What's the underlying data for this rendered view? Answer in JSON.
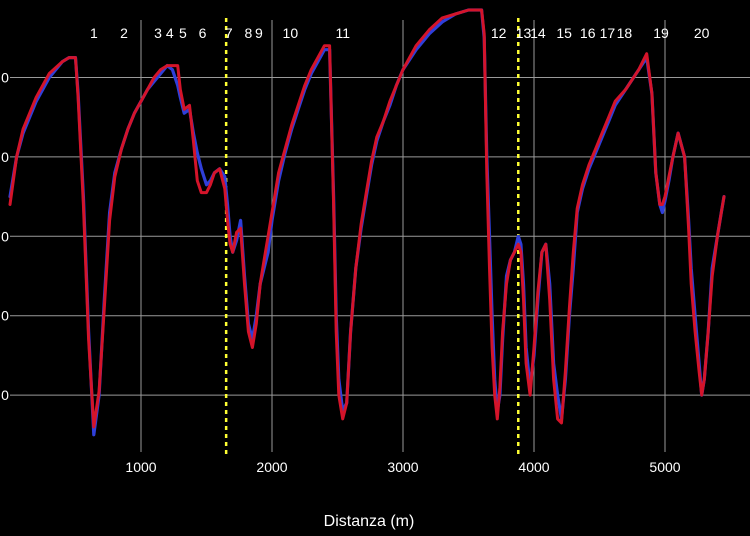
{
  "chart_data": {
    "type": "line",
    "xlabel": "Distanza (m)",
    "xlim": [
      0,
      5450
    ],
    "xticks": [
      1000,
      2000,
      3000,
      4000,
      5000
    ],
    "ylim": [
      0,
      58
    ],
    "y_gridlines": [
      10,
      20,
      30,
      40,
      50
    ],
    "y_tick_label_fragments": [
      "0",
      "0",
      "0",
      "0",
      "0"
    ],
    "grid": true,
    "corner_labels": [
      {
        "x": 640,
        "label": "1"
      },
      {
        "x": 870,
        "label": "2"
      },
      {
        "x": 1130,
        "label": "3"
      },
      {
        "x": 1220,
        "label": "4"
      },
      {
        "x": 1320,
        "label": "5"
      },
      {
        "x": 1470,
        "label": "6"
      },
      {
        "x": 1670,
        "label": "7"
      },
      {
        "x": 1820,
        "label": "8"
      },
      {
        "x": 1900,
        "label": "9"
      },
      {
        "x": 2140,
        "label": "10"
      },
      {
        "x": 2540,
        "label": "11"
      },
      {
        "x": 3730,
        "label": "12"
      },
      {
        "x": 3920,
        "label": "13"
      },
      {
        "x": 4030,
        "label": "14"
      },
      {
        "x": 4230,
        "label": "15"
      },
      {
        "x": 4410,
        "label": "16"
      },
      {
        "x": 4560,
        "label": "17"
      },
      {
        "x": 4690,
        "label": "18"
      },
      {
        "x": 4970,
        "label": "19"
      },
      {
        "x": 5280,
        "label": "20"
      }
    ],
    "sector_markers": [
      1650,
      3880
    ],
    "series": [
      {
        "color": "#2f3fd9",
        "x": [
          0,
          50,
          100,
          200,
          300,
          400,
          450,
          500,
          520,
          560,
          600,
          640,
          680,
          720,
          760,
          800,
          850,
          900,
          950,
          1000,
          1050,
          1100,
          1150,
          1200,
          1240,
          1280,
          1300,
          1330,
          1370,
          1400,
          1430,
          1460,
          1500,
          1530,
          1560,
          1600,
          1640,
          1660,
          1680,
          1700,
          1730,
          1760,
          1790,
          1820,
          1850,
          1880,
          1910,
          1940,
          1970,
          2000,
          2050,
          2100,
          2150,
          2200,
          2250,
          2300,
          2350,
          2400,
          2440,
          2470,
          2490,
          2510,
          2540,
          2570,
          2600,
          2640,
          2680,
          2720,
          2760,
          2800,
          2850,
          2900,
          2950,
          3000,
          3100,
          3200,
          3300,
          3400,
          3500,
          3550,
          3600,
          3620,
          3640,
          3660,
          3680,
          3700,
          3720,
          3740,
          3760,
          3790,
          3820,
          3850,
          3880,
          3900,
          3920,
          3940,
          3970,
          4000,
          4030,
          4060,
          4090,
          4120,
          4150,
          4180,
          4210,
          4240,
          4270,
          4300,
          4330,
          4370,
          4420,
          4470,
          4520,
          4570,
          4620,
          4700,
          4800,
          4860,
          4900,
          4930,
          4960,
          4980,
          5000,
          5030,
          5060,
          5100,
          5150,
          5180,
          5200,
          5230,
          5260,
          5280,
          5300,
          5330,
          5360,
          5400,
          5430,
          5450
        ],
        "y": [
          35,
          40,
          43,
          47,
          50,
          52,
          52.5,
          52.5,
          48,
          35,
          18,
          5,
          10,
          22,
          33,
          38,
          41,
          43.5,
          45.5,
          47,
          48.5,
          49.5,
          50.5,
          51.5,
          51,
          49,
          47.5,
          45.5,
          46,
          43,
          40.5,
          38.5,
          36.5,
          37,
          38,
          38.5,
          37.5,
          34,
          30,
          28,
          29.5,
          32,
          25,
          19,
          17,
          20,
          24,
          26,
          28,
          32,
          37,
          40.5,
          43.5,
          46,
          48.5,
          50.5,
          52,
          53.5,
          53.5,
          35,
          20,
          12,
          8,
          9,
          18,
          26,
          31,
          35,
          39,
          42,
          44.5,
          46.5,
          49,
          51,
          53.5,
          55.5,
          57,
          58,
          58.5,
          58.5,
          58.5,
          55,
          40,
          30,
          20,
          12,
          8,
          10,
          17,
          25,
          27,
          28,
          30,
          29,
          24,
          16,
          11,
          15,
          22,
          28,
          29,
          24,
          14,
          10,
          7,
          12,
          20,
          26,
          33,
          36,
          38.5,
          40.5,
          42.5,
          44.5,
          46.5,
          48.5,
          51,
          52.5,
          48,
          38,
          34,
          33,
          34.5,
          37,
          40,
          43,
          40,
          32,
          26,
          20,
          14,
          10,
          12,
          18,
          26,
          30,
          33,
          35
        ]
      },
      {
        "color": "#d4142a",
        "x": [
          0,
          50,
          100,
          200,
          300,
          400,
          450,
          500,
          520,
          560,
          600,
          640,
          680,
          720,
          760,
          800,
          850,
          900,
          950,
          1000,
          1050,
          1100,
          1150,
          1200,
          1240,
          1280,
          1300,
          1330,
          1370,
          1400,
          1430,
          1460,
          1500,
          1530,
          1560,
          1600,
          1640,
          1660,
          1680,
          1700,
          1730,
          1760,
          1790,
          1820,
          1850,
          1880,
          1910,
          1940,
          1970,
          2000,
          2050,
          2100,
          2150,
          2200,
          2250,
          2300,
          2350,
          2400,
          2440,
          2470,
          2490,
          2510,
          2540,
          2570,
          2600,
          2640,
          2680,
          2720,
          2760,
          2800,
          2850,
          2900,
          2950,
          3000,
          3100,
          3200,
          3300,
          3400,
          3500,
          3550,
          3600,
          3620,
          3640,
          3660,
          3680,
          3700,
          3720,
          3740,
          3760,
          3790,
          3820,
          3850,
          3880,
          3900,
          3920,
          3940,
          3970,
          4000,
          4030,
          4060,
          4090,
          4120,
          4150,
          4180,
          4210,
          4240,
          4270,
          4300,
          4330,
          4370,
          4420,
          4470,
          4520,
          4570,
          4620,
          4700,
          4800,
          4860,
          4900,
          4930,
          4960,
          4980,
          5000,
          5030,
          5060,
          5100,
          5150,
          5180,
          5200,
          5230,
          5260,
          5280,
          5300,
          5330,
          5360,
          5400,
          5430,
          5450
        ],
        "y": [
          34,
          40,
          43.5,
          47.5,
          50.5,
          52,
          52.5,
          52.5,
          47.5,
          34,
          17,
          6,
          10.5,
          21,
          32,
          37.5,
          41,
          43.5,
          45.5,
          47,
          48.5,
          50,
          51,
          51.5,
          51.5,
          51.5,
          48.5,
          46,
          46.5,
          42,
          37,
          35.5,
          35.5,
          36.5,
          38,
          38.5,
          36,
          32,
          29,
          28,
          30.5,
          31,
          24,
          18,
          16,
          19,
          24,
          27,
          30,
          33,
          38,
          41,
          44,
          46.5,
          49,
          51,
          52.5,
          54,
          54,
          34,
          18,
          10,
          7,
          9,
          18,
          26,
          31.5,
          35.5,
          39.5,
          42.5,
          44.5,
          47,
          49,
          51,
          54,
          56,
          57.5,
          58,
          58.5,
          58.5,
          58.5,
          55.5,
          38,
          26,
          16,
          10,
          7,
          11,
          18,
          24,
          27,
          28,
          29,
          28,
          22,
          14,
          10,
          16,
          23,
          28,
          29,
          22,
          12,
          7,
          6.5,
          13,
          21,
          28,
          33.5,
          36.5,
          39,
          41,
          43,
          45,
          47,
          48.5,
          51,
          53,
          48,
          38,
          34,
          34,
          35,
          37.5,
          40,
          43,
          40,
          31,
          24,
          18,
          13,
          10,
          12,
          18,
          25,
          30,
          33,
          35
        ]
      }
    ]
  }
}
